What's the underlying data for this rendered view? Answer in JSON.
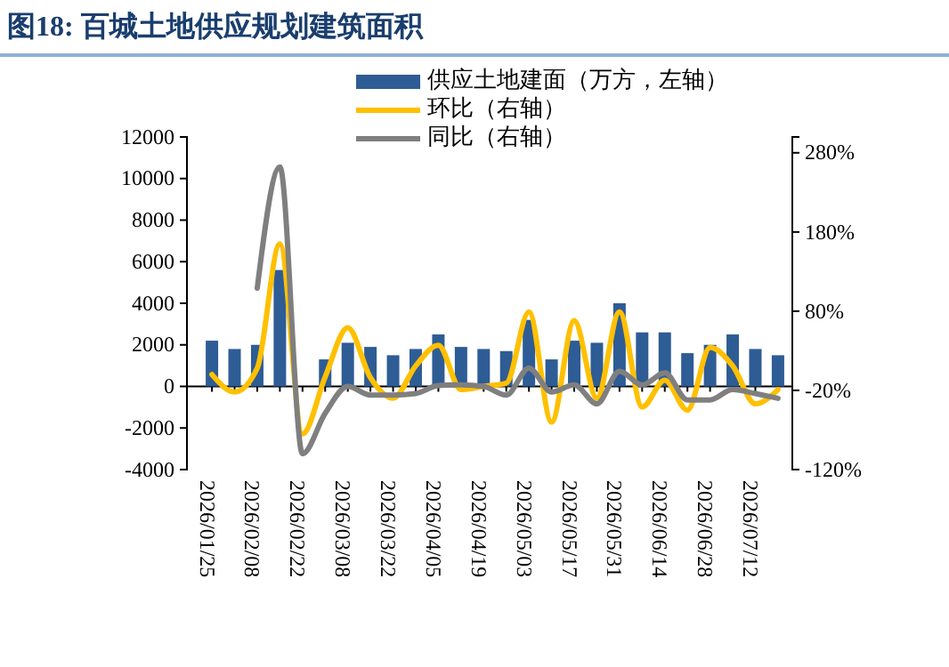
{
  "chart_data": {
    "type": "bar",
    "title": "图18: 百城土地供应规划建筑面积",
    "categories": [
      "2026/01/25",
      null,
      "2026/02/08",
      null,
      "2026/02/22",
      null,
      "2026/03/08",
      null,
      "2026/03/22",
      null,
      "2026/04/05",
      null,
      "2026/04/19",
      null,
      "2026/05/03",
      null,
      "2026/05/17",
      null,
      "2026/05/31",
      null,
      "2026/06/14",
      null,
      "2026/06/28",
      null,
      "2026/07/12",
      null
    ],
    "series": [
      {
        "name": "供应土地建面（万方，左轴）",
        "color": "#2e5c95",
        "values": [
          2200,
          1800,
          2000,
          5600,
          null,
          1300,
          2100,
          1900,
          1500,
          1800,
          2500,
          1900,
          1800,
          1700,
          3200,
          1300,
          2200,
          2100,
          4000,
          2600,
          2600,
          1600,
          2000,
          2500,
          1800,
          1500
        ]
      },
      {
        "name": "环比（右轴）",
        "type": "line",
        "axis": "y2",
        "color": "#ffc000",
        "values": [
          0,
          -22,
          8,
          165,
          -75,
          -3,
          59,
          -4,
          -30,
          11,
          37,
          -19,
          -15,
          -11,
          79,
          -60,
          68,
          -30,
          79,
          -41,
          -7,
          -45,
          34,
          11,
          -37,
          -19
        ]
      },
      {
        "name": "同比（右轴）",
        "type": "line",
        "axis": "y2",
        "color": "#7f7f7f",
        "values": [
          null,
          null,
          109,
          262,
          -100,
          -49,
          -15,
          -26,
          -26,
          -24,
          -14,
          -13,
          -15,
          -26,
          8,
          -22,
          -13,
          -37,
          4,
          -13,
          2,
          -32,
          -32,
          -19,
          -24,
          -30
        ]
      }
    ],
    "ylim": [
      -4000,
      12000
    ],
    "yticks": [
      -4000,
      -2000,
      0,
      2000,
      4000,
      6000,
      8000,
      10000,
      12000
    ],
    "y2lim": [
      -120,
      300
    ],
    "y2ticks": [
      {
        "value": -120,
        "label": "-120%"
      },
      {
        "value": -20,
        "label": "-20%"
      },
      {
        "value": 80,
        "label": "80%"
      },
      {
        "value": 180,
        "label": "180%"
      },
      {
        "value": 280,
        "label": "280%"
      }
    ],
    "legend": "top"
  }
}
